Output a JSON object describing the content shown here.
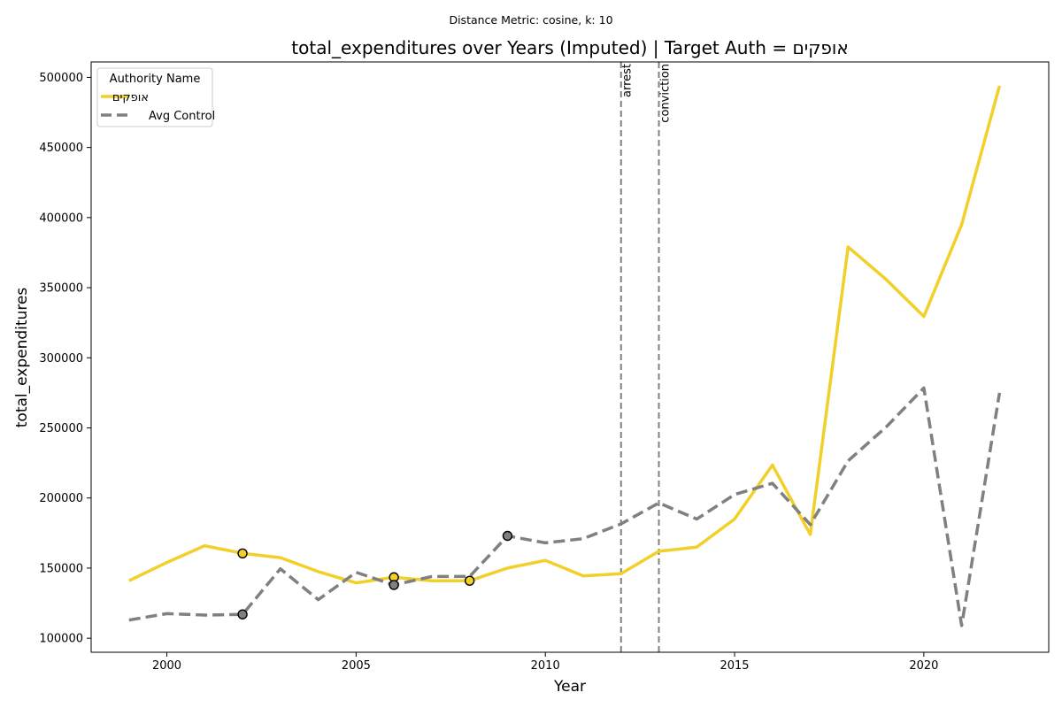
{
  "suptitle": "Distance Metric: cosine, k: 10",
  "colors": {
    "target": "#f2d02a",
    "control": "#808080",
    "event_line": "#808080"
  },
  "chart_data": {
    "type": "line",
    "title": "total_expenditures over Years (Imputed) | Target Auth = אופקים",
    "xlabel": "Year",
    "ylabel": "total_expenditures",
    "xlim": [
      1998,
      2023.3
    ],
    "ylim": [
      90000,
      511000
    ],
    "xticks": [
      2000,
      2005,
      2010,
      2015,
      2020
    ],
    "yticks": [
      100000,
      150000,
      200000,
      250000,
      300000,
      350000,
      400000,
      450000,
      500000
    ],
    "grid": false,
    "legend": {
      "title": "Authority Name",
      "placement": "top-left",
      "entries": [
        "אופקים",
        "Avg Control"
      ]
    },
    "x": [
      1999,
      2000,
      2001,
      2002,
      2003,
      2004,
      2005,
      2006,
      2007,
      2008,
      2009,
      2010,
      2011,
      2012,
      2013,
      2014,
      2015,
      2016,
      2017,
      2018,
      2019,
      2020,
      2021,
      2022
    ],
    "series": [
      {
        "name": "אופקים",
        "style": "solid",
        "values": [
          141000,
          154000,
          166000,
          160500,
          157500,
          147500,
          139500,
          143500,
          141000,
          141000,
          150000,
          155500,
          144500,
          146000,
          162000,
          165000,
          185000,
          223500,
          174000,
          379000,
          356000,
          329500,
          395000,
          494000
        ],
        "imputed_years": [
          2002,
          2006,
          2008
        ]
      },
      {
        "name": "Avg Control",
        "style": "dashed",
        "values": [
          113000,
          117500,
          116500,
          117000,
          149500,
          127500,
          147000,
          138000,
          144000,
          144000,
          173000,
          168000,
          171000,
          181500,
          196500,
          185000,
          202500,
          210500,
          181000,
          226500,
          250500,
          278500,
          109000,
          275000
        ],
        "imputed_years": [
          2002,
          2006,
          2009
        ]
      }
    ],
    "events": [
      {
        "x": 2012,
        "label": "arrest"
      },
      {
        "x": 2013,
        "label": "conviction"
      }
    ]
  }
}
